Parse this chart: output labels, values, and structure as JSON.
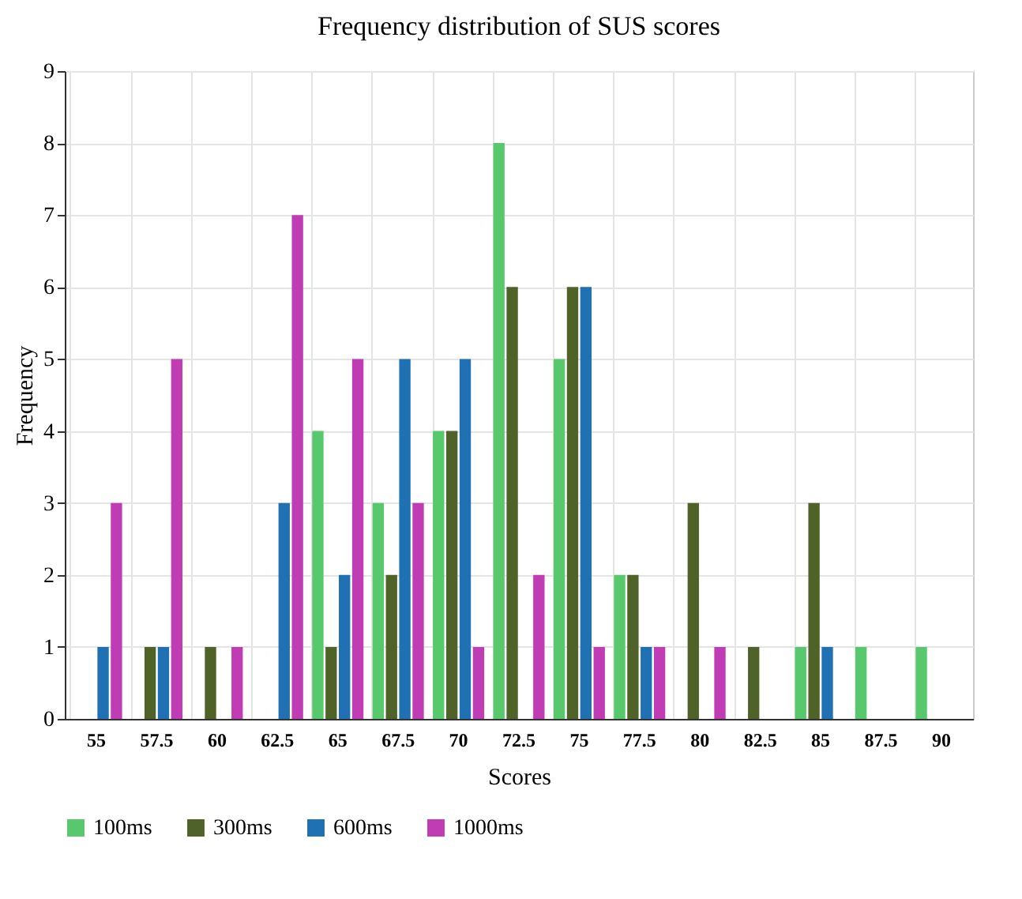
{
  "chart_data": {
    "type": "bar",
    "title": "Frequency distribution of SUS scores",
    "xlabel": "Scores",
    "ylabel": "Frequency",
    "categories": [
      "55",
      "57.5",
      "60",
      "62.5",
      "65",
      "67.5",
      "70",
      "72.5",
      "75",
      "77.5",
      "80",
      "82.5",
      "85",
      "87.5",
      "90"
    ],
    "series": [
      {
        "name": "100ms",
        "color": "#57c86b",
        "values": [
          null,
          null,
          null,
          null,
          4,
          3,
          4,
          8,
          5,
          2,
          null,
          null,
          1,
          1,
          1
        ]
      },
      {
        "name": "300ms",
        "color": "#4f6228",
        "values": [
          null,
          1,
          1,
          null,
          1,
          2,
          4,
          6,
          6,
          2,
          3,
          1,
          3,
          null,
          null
        ]
      },
      {
        "name": "600ms",
        "color": "#2070b4",
        "values": [
          1,
          1,
          null,
          3,
          2,
          5,
          5,
          null,
          6,
          1,
          null,
          null,
          1,
          null,
          null
        ]
      },
      {
        "name": "1000ms",
        "color": "#c03cb4",
        "values": [
          3,
          5,
          1,
          7,
          5,
          3,
          1,
          2,
          1,
          1,
          1,
          null,
          null,
          null,
          null
        ]
      }
    ],
    "ylim": [
      0,
      9
    ],
    "yticks": [
      0,
      1,
      2,
      3,
      4,
      5,
      6,
      7,
      8,
      9
    ],
    "grid": true,
    "legend": "bottom"
  }
}
